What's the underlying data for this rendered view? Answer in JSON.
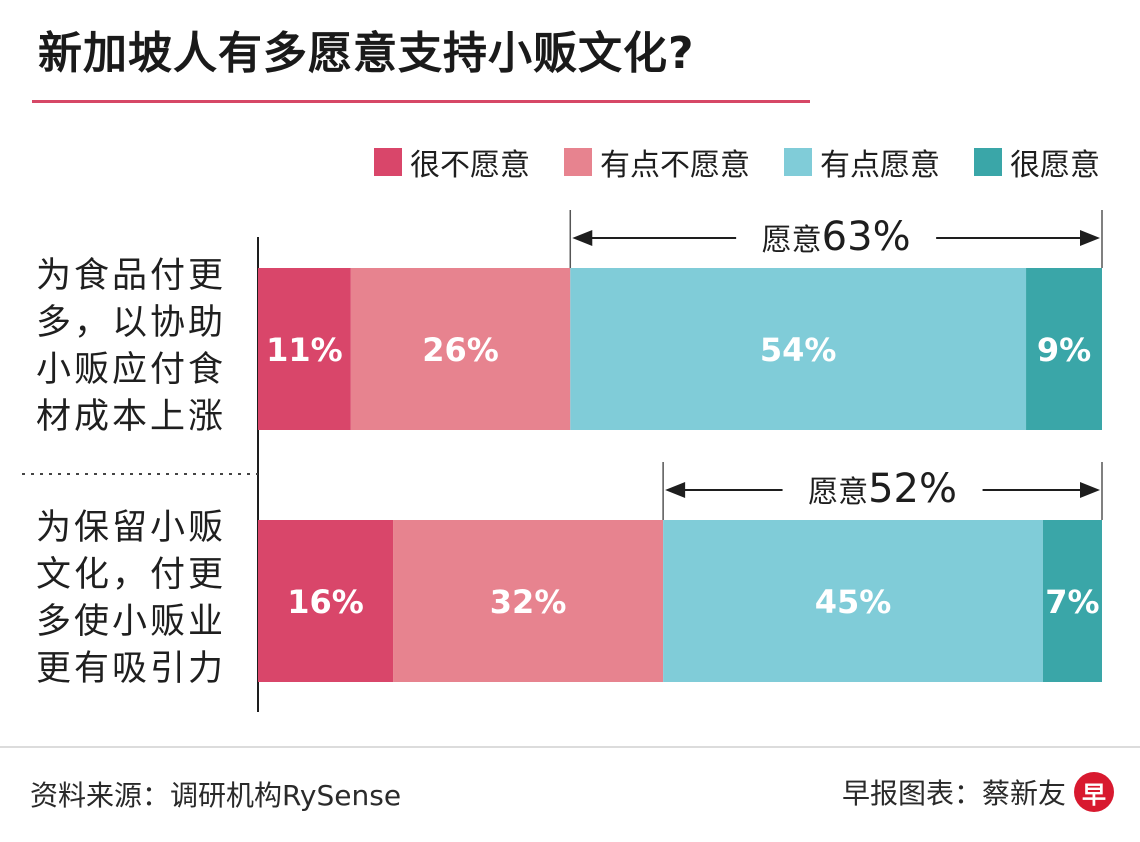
{
  "title": "新加坡人有多愿意支持小贩文化?",
  "source": "资料来源：调研机构RySense",
  "credit": "早报图表：蔡新友",
  "logo_text": "早",
  "chart_data": {
    "type": "bar",
    "orientation": "horizontal",
    "stacked": true,
    "percent": true,
    "categories": [
      "为食品付更多，以协助小贩应付食材成本上涨",
      "为保留小贩文化，付更多使小贩业更有吸引力"
    ],
    "category_lines": [
      [
        "为食品付更",
        "多，以协助",
        "小贩应付食",
        "材成本上涨"
      ],
      [
        "为保留小贩",
        "文化，付更",
        "多使小贩业",
        "更有吸引力"
      ]
    ],
    "series": [
      {
        "name": "很不愿意",
        "values": [
          11,
          16
        ],
        "labels": [
          "11%",
          "16%"
        ],
        "color": "#d9466a"
      },
      {
        "name": "有点不愿意",
        "values": [
          26,
          32
        ],
        "labels": [
          "26%",
          "32%"
        ],
        "color": "#e7838f"
      },
      {
        "name": "有点愿意",
        "values": [
          54,
          45
        ],
        "labels": [
          "54%",
          "45%"
        ],
        "color": "#80ccd8"
      },
      {
        "name": "很愿意",
        "values": [
          9,
          7
        ],
        "labels": [
          "9%",
          "7%"
        ],
        "color": "#3aa6a8"
      }
    ],
    "willing_totals": [
      {
        "label": "愿意",
        "value": "63%"
      },
      {
        "label": "愿意",
        "value": "52%"
      }
    ],
    "legend_position": "top-right",
    "xlim": [
      0,
      100
    ]
  }
}
